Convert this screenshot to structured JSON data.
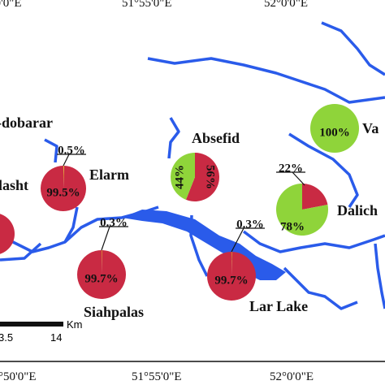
{
  "map": {
    "top_coords": [
      "°50'0\"E",
      "51°55'0\"E",
      "52°0'0\"E"
    ],
    "bottom_coords": [
      "°50'0\"E",
      "51°55'0\"E",
      "52°0'0\"E"
    ],
    "scale": {
      "unit": "Km",
      "ticks": [
        "3.5",
        "14"
      ]
    },
    "places": [
      "-dobarar",
      "lasht"
    ],
    "pies": [
      {
        "name": "Elarm",
        "slices": [
          {
            "value": 0.5,
            "label": "0.5%",
            "color": "#e6d020"
          },
          {
            "value": 99.5,
            "label": "99.5%",
            "color": "#c92a43"
          }
        ]
      },
      {
        "name": "Absefid",
        "slices": [
          {
            "value": 56,
            "label": "56%",
            "color": "#c92a43"
          },
          {
            "value": 44,
            "label": "44%",
            "color": "#8fd43a"
          }
        ]
      },
      {
        "name": "Va",
        "slices": [
          {
            "value": 100,
            "label": "100%",
            "color": "#8fd43a"
          }
        ]
      },
      {
        "name": "Siahpalas",
        "slices": [
          {
            "value": 0.3,
            "label": "0.3%",
            "color": "#e6d020"
          },
          {
            "value": 99.7,
            "label": "99.7%",
            "color": "#c92a43"
          }
        ]
      },
      {
        "name": "Lar Lake",
        "slices": [
          {
            "value": 0.3,
            "label": "0.3%",
            "color": "#e6d020"
          },
          {
            "value": 99.7,
            "label": "99.7%",
            "color": "#c92a43"
          }
        ]
      },
      {
        "name": "Dalich",
        "slices": [
          {
            "value": 22,
            "label": "22%",
            "color": "#c92a43"
          },
          {
            "value": 78,
            "label": "78%",
            "color": "#8fd43a"
          }
        ]
      }
    ]
  }
}
